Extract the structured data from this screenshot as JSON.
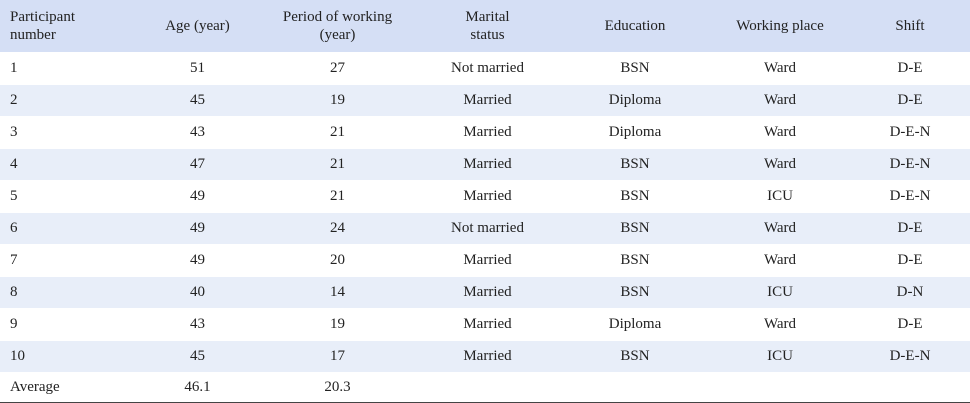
{
  "table": {
    "header": [
      "Participant number",
      "Age (year)",
      "Period of working (year)",
      "Marital status",
      "Education",
      "Working place",
      "Shift"
    ],
    "rows": [
      [
        1,
        51,
        27,
        "Not married",
        "BSN",
        "Ward",
        "D-E"
      ],
      [
        2,
        45,
        19,
        "Married",
        "Diploma",
        "Ward",
        "D-E"
      ],
      [
        3,
        43,
        21,
        "Married",
        "Diploma",
        "Ward",
        "D-E-N"
      ],
      [
        4,
        47,
        21,
        "Married",
        "BSN",
        "Ward",
        "D-E-N"
      ],
      [
        5,
        49,
        21,
        "Married",
        "BSN",
        "ICU",
        "D-E-N"
      ],
      [
        6,
        49,
        24,
        "Not married",
        "BSN",
        "Ward",
        "D-E"
      ],
      [
        7,
        49,
        20,
        "Married",
        "BSN",
        "Ward",
        "D-E"
      ],
      [
        8,
        40,
        14,
        "Married",
        "BSN",
        "ICU",
        "D-N"
      ],
      [
        9,
        43,
        19,
        "Married",
        "Diploma",
        "Ward",
        "D-E"
      ],
      [
        10,
        45,
        17,
        "Married",
        "BSN",
        "ICU",
        "D-E-N"
      ]
    ],
    "footer": {
      "label": "Average",
      "values": [
        46.1,
        20.3
      ]
    }
  }
}
